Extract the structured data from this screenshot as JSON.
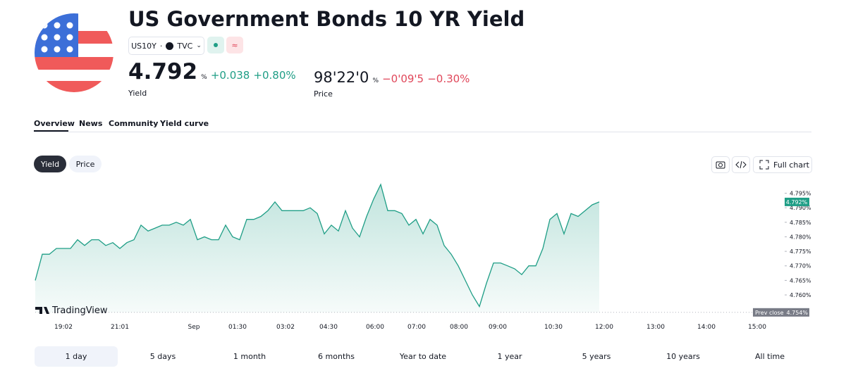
{
  "header": {
    "title": "US Government Bonds 10 YR Yield",
    "symbol": "US10Y",
    "separator": "·",
    "exchange": "TVC",
    "status_icon": "≈"
  },
  "quote": {
    "yield": {
      "value": "4.792",
      "unit": "%",
      "change": "+0.038",
      "change_percent": "+0.80%",
      "label": "Yield"
    },
    "price": {
      "value": "98'22'0",
      "unit": "%",
      "change": "−0'09'5",
      "change_percent": "−0.30%",
      "label": "Price"
    }
  },
  "tabs": [
    "Overview",
    "News",
    "Community",
    "Yield curve"
  ],
  "toggles": [
    "Yield",
    "Price"
  ],
  "full_chart": "Full chart",
  "chart": {
    "type": "line",
    "brand": "TradingView",
    "color": "#1f9e86",
    "x_labels": [
      "19:02",
      "21:01",
      "Sep",
      "01:30",
      "03:02",
      "04:30",
      "06:00",
      "07:00",
      "08:00",
      "09:00",
      "10:30",
      "12:00",
      "13:00",
      "14:00",
      "15:00"
    ],
    "values": [
      4.765,
      4.774,
      4.774,
      4.776,
      4.776,
      4.776,
      4.779,
      4.777,
      4.779,
      4.779,
      4.777,
      4.778,
      4.776,
      4.778,
      4.779,
      4.784,
      4.782,
      4.783,
      4.784,
      4.784,
      4.785,
      4.784,
      4.786,
      4.779,
      4.78,
      4.779,
      4.779,
      4.784,
      4.78,
      4.779,
      4.786,
      4.786,
      4.787,
      4.789,
      4.792,
      4.789,
      4.789,
      4.789,
      4.789,
      4.79,
      4.788,
      4.781,
      4.784,
      4.782,
      4.789,
      4.783,
      4.78,
      4.787,
      4.793,
      4.798,
      4.789,
      4.789,
      4.788,
      4.784,
      4.786,
      4.781,
      4.786,
      4.784,
      4.777,
      4.774,
      4.77,
      4.765,
      4.76,
      4.756,
      4.764,
      4.771,
      4.771,
      4.77,
      4.769,
      4.767,
      4.77,
      4.77,
      4.776,
      4.786,
      4.788,
      4.781,
      4.788,
      4.787,
      4.789,
      4.791,
      4.792
    ],
    "ylim": [
      4.7525,
      4.799
    ],
    "yticks": [
      {
        "value": 4.76,
        "label": "4.760%"
      },
      {
        "value": 4.765,
        "label": "4.765%"
      },
      {
        "value": 4.77,
        "label": "4.770%"
      },
      {
        "value": 4.775,
        "label": "4.775%"
      },
      {
        "value": 4.78,
        "label": "4.780%"
      },
      {
        "value": 4.785,
        "label": "4.785%"
      },
      {
        "value": 4.79,
        "label": "4.790%"
      },
      {
        "value": 4.795,
        "label": "4.795%"
      }
    ],
    "last_value": {
      "value": 4.792,
      "label": "4.792%"
    },
    "prev_close": {
      "label": "Prev close",
      "value": 4.754,
      "value_label": "4.754%"
    }
  },
  "periods": [
    "1 day",
    "5 days",
    "1 month",
    "6 months",
    "Year to date",
    "1 year",
    "5 years",
    "10 years",
    "All time"
  ]
}
